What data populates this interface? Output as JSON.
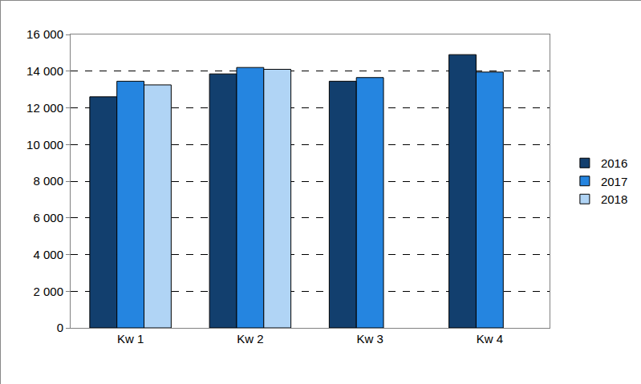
{
  "chart_data": {
    "type": "bar",
    "categories": [
      "Kw 1",
      "Kw 2",
      "Kw 3",
      "Kw 4"
    ],
    "series": [
      {
        "name": "2016",
        "color": "#123f6e",
        "values": [
          12600,
          13850,
          13450,
          14900
        ]
      },
      {
        "name": "2017",
        "color": "#2585e0",
        "values": [
          13450,
          14200,
          13650,
          13950
        ]
      },
      {
        "name": "2018",
        "color": "#b0d4f5",
        "values": [
          13250,
          14100,
          null,
          null
        ]
      }
    ],
    "ylim": [
      0,
      16000
    ],
    "yticks": [
      0,
      {
        "value": 2000,
        "label": "2 000"
      },
      {
        "value": 4000,
        "label": "4 000"
      },
      {
        "value": 6000,
        "label": "6 000"
      },
      {
        "value": 8000,
        "label": "8 000"
      },
      {
        "value": 10000,
        "label": "10 000"
      },
      {
        "value": 12000,
        "label": "12 000"
      },
      {
        "value": 14000,
        "label": "14 000"
      },
      {
        "value": 16000,
        "label": "16 000"
      }
    ],
    "grid": true,
    "legend": "right"
  }
}
